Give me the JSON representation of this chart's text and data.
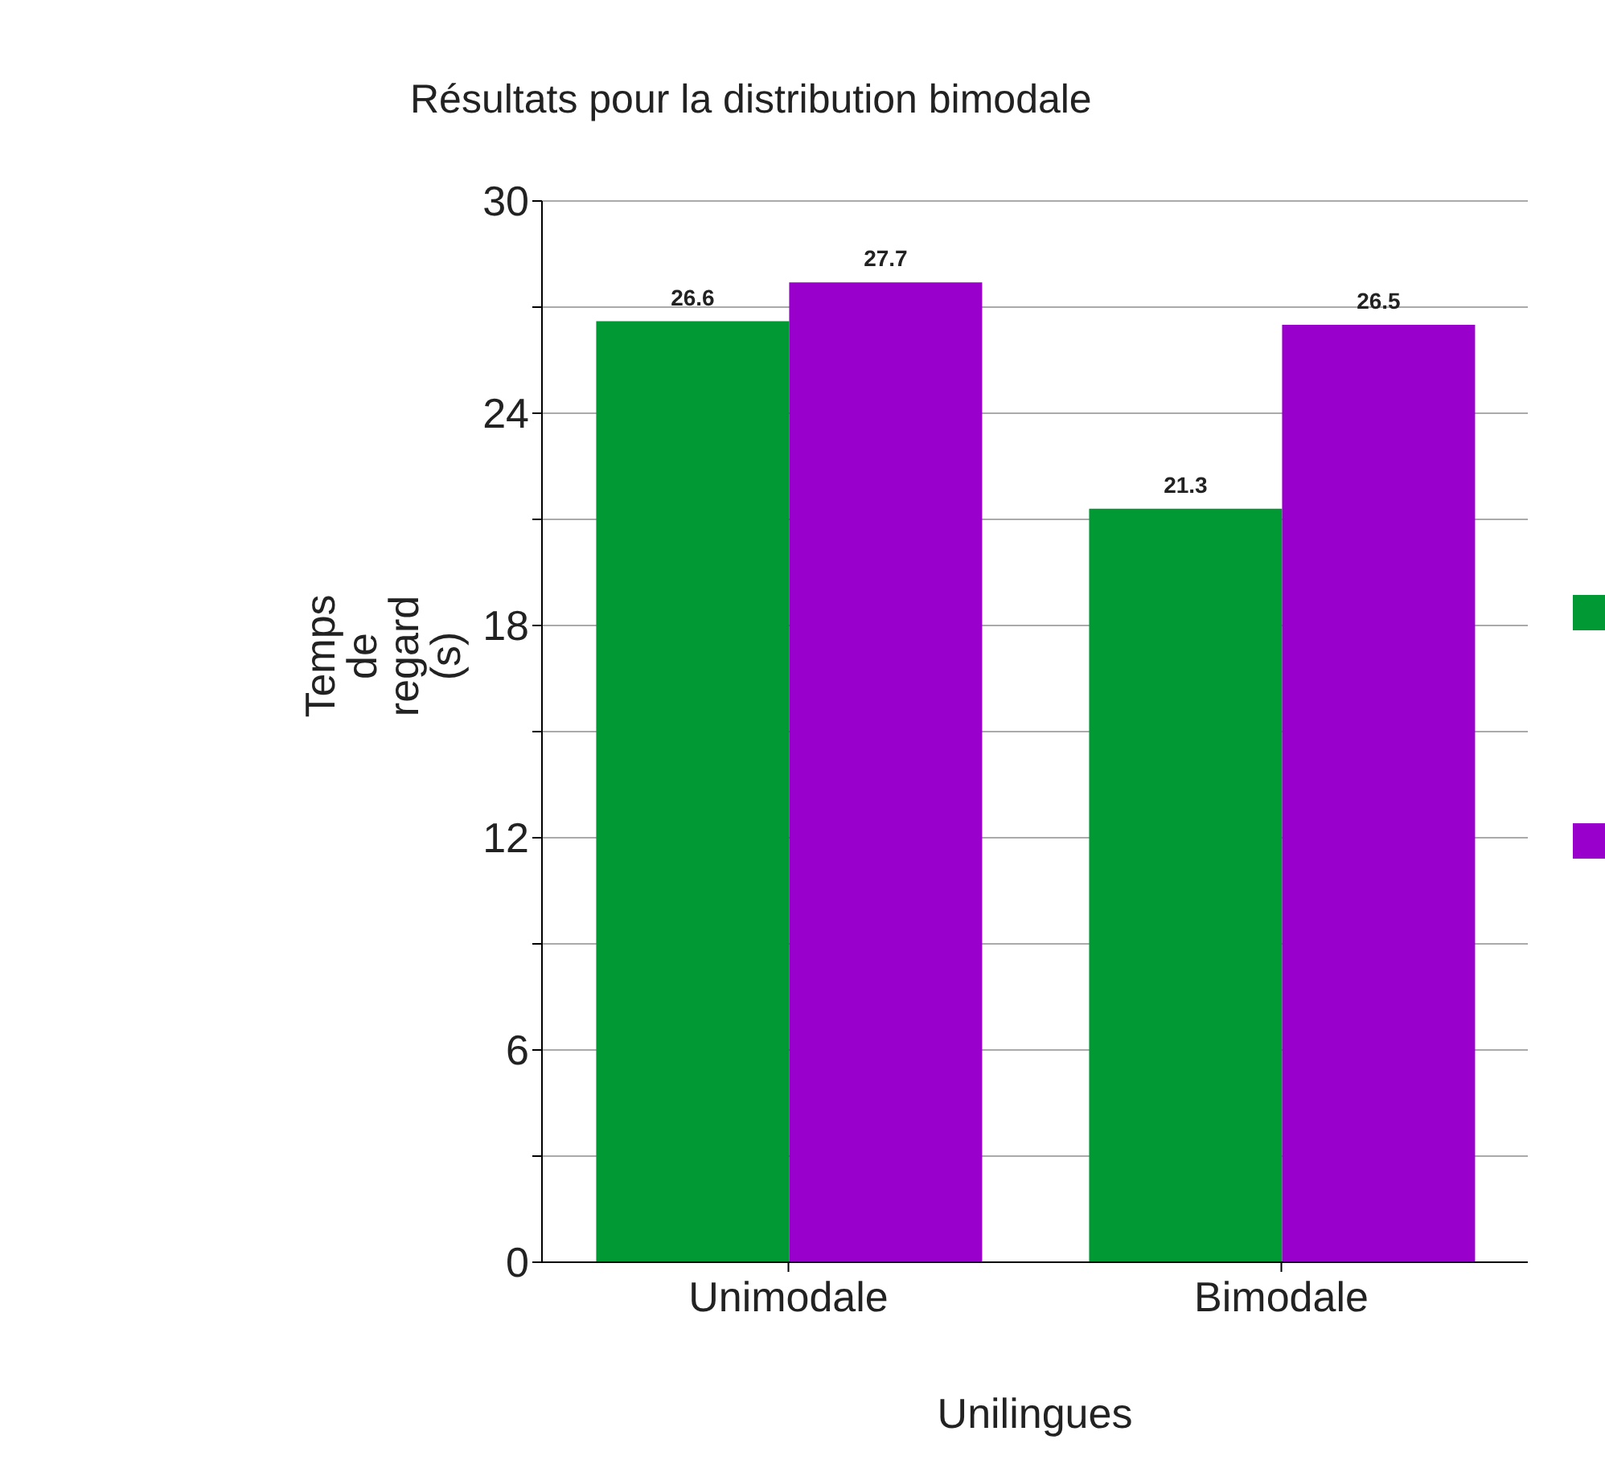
{
  "chart_data": {
    "type": "bar",
    "title": "Résultats pour la distribution bimodale",
    "xlabel": "Unilingues",
    "ylabel": "Temps de regard (s)",
    "categories": [
      "Unimodale",
      "Bimodale"
    ],
    "series": [
      {
        "color": "#009933",
        "values": [
          26.6,
          21.3
        ]
      },
      {
        "color": "#9900cc",
        "values": [
          27.7,
          26.5
        ]
      }
    ],
    "ylim": [
      0,
      30
    ],
    "yticks": [
      0,
      {
        "value": 3,
        "label": null
      },
      6,
      {
        "value": 9,
        "label": null
      },
      12,
      {
        "value": 15,
        "label": null
      },
      18,
      {
        "value": 21,
        "label": null
      },
      24,
      {
        "value": 27,
        "label": null
      },
      30
    ],
    "grid": "y",
    "data_labels": true
  }
}
